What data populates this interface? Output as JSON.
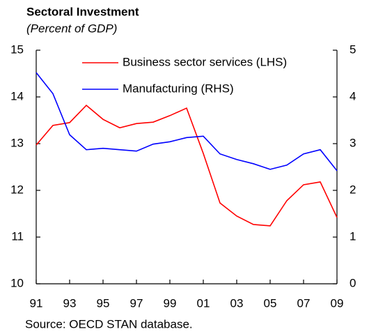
{
  "chart_data": {
    "type": "line",
    "title": "Sectoral Investment",
    "subtitle": "(Percent of GDP)",
    "source": "Source: OECD STAN database.",
    "categories": [
      "91",
      null,
      "93",
      null,
      "95",
      null,
      "97",
      null,
      "99",
      null,
      "01",
      null,
      "03",
      null,
      "05",
      null,
      "07",
      null,
      "09"
    ],
    "series": [
      {
        "name": "Business sector services (LHS)",
        "color": "#ff0000",
        "axis": "y",
        "values": [
          12.97,
          13.39,
          13.45,
          13.82,
          13.52,
          13.34,
          13.43,
          13.46,
          13.6,
          13.76,
          12.79,
          11.73,
          11.45,
          11.27,
          11.24,
          11.78,
          12.12,
          12.18,
          11.42
        ]
      },
      {
        "name": "Manufacturing (RHS)",
        "color": "#0000ff",
        "axis": "y2",
        "values": [
          4.52,
          4.07,
          3.19,
          2.87,
          2.9,
          2.87,
          2.84,
          2.99,
          3.04,
          3.13,
          3.16,
          2.78,
          2.66,
          2.57,
          2.45,
          2.54,
          2.78,
          2.87,
          2.42
        ]
      }
    ],
    "ylim": [
      10,
      15
    ],
    "yticks": [
      10,
      11,
      12,
      13,
      14,
      15
    ],
    "y2lim": [
      0,
      5
    ],
    "y2ticks": [
      0,
      1,
      2,
      3,
      4,
      5
    ],
    "grid": false
  }
}
